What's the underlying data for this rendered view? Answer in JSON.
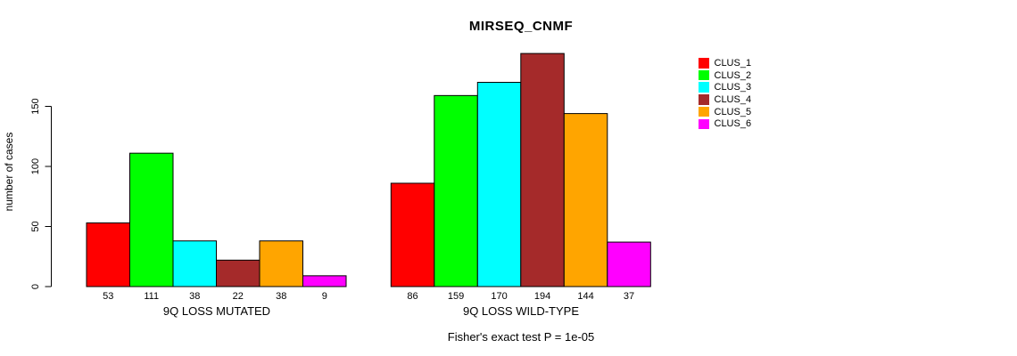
{
  "chart_data": {
    "type": "bar",
    "title": "MIRSEQ_CNMF",
    "ylabel": "number of cases",
    "ylim": [
      0,
      200
    ],
    "yticks": [
      0,
      50,
      100,
      150
    ],
    "grid": false,
    "legend_position": "top-right-inside",
    "annotation": "Fisher's exact test P = 1e-05",
    "clusters": [
      "CLUS_1",
      "CLUS_2",
      "CLUS_3",
      "CLUS_4",
      "CLUS_5",
      "CLUS_6"
    ],
    "cluster_colors": [
      "#ff0000",
      "#00ff00",
      "#00ffff",
      "#a52a2a",
      "#ffa500",
      "#ff00ff"
    ],
    "bar_border_color": "#000000",
    "axis_color": "#000000",
    "groups": [
      {
        "label": "9Q LOSS MUTATED",
        "values": [
          53,
          111,
          38,
          22,
          38,
          9
        ]
      },
      {
        "label": "9Q LOSS WILD-TYPE",
        "values": [
          86,
          159,
          170,
          194,
          144,
          37
        ]
      }
    ]
  }
}
